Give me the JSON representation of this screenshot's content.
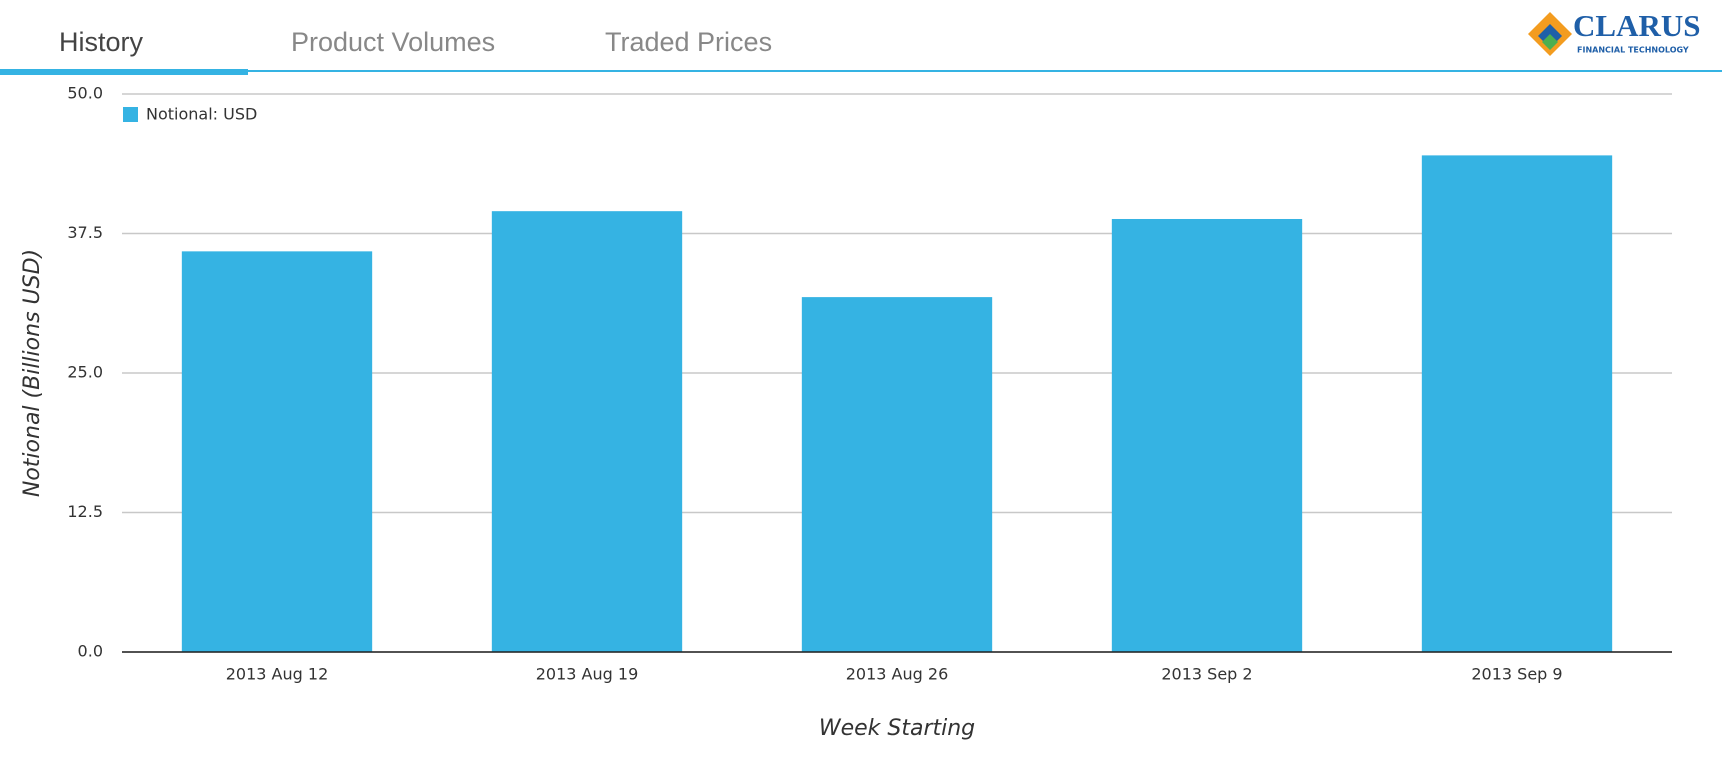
{
  "tabs": [
    "History",
    "Product Volumes",
    "Traded Prices"
  ],
  "logo": {
    "name": "CLARUS",
    "tagline": "FINANCIAL TECHNOLOGY"
  },
  "chart_data": {
    "type": "bar",
    "x_label": "Week Starting",
    "y_label": "Notional (Billions USD)",
    "categories": [
      "2013 Aug 12",
      "2013 Aug 19",
      "2013 Aug 26",
      "2013 Sep 2",
      "2013 Sep 9"
    ],
    "series": [
      {
        "name": "Notional: USD",
        "color": "#35b3e3",
        "values": [
          35.9,
          39.5,
          31.8,
          38.8,
          44.5
        ]
      }
    ],
    "ylim": [
      0,
      50
    ],
    "yticks": [
      {
        "value": 0,
        "label": "0.0"
      },
      {
        "value": 12.5,
        "label": "12.5"
      },
      {
        "value": 25,
        "label": "25.0"
      },
      {
        "value": 37.5,
        "label": "37.5"
      },
      {
        "value": 50,
        "label": "50.0"
      }
    ],
    "grid": true,
    "legend": "top-left"
  }
}
